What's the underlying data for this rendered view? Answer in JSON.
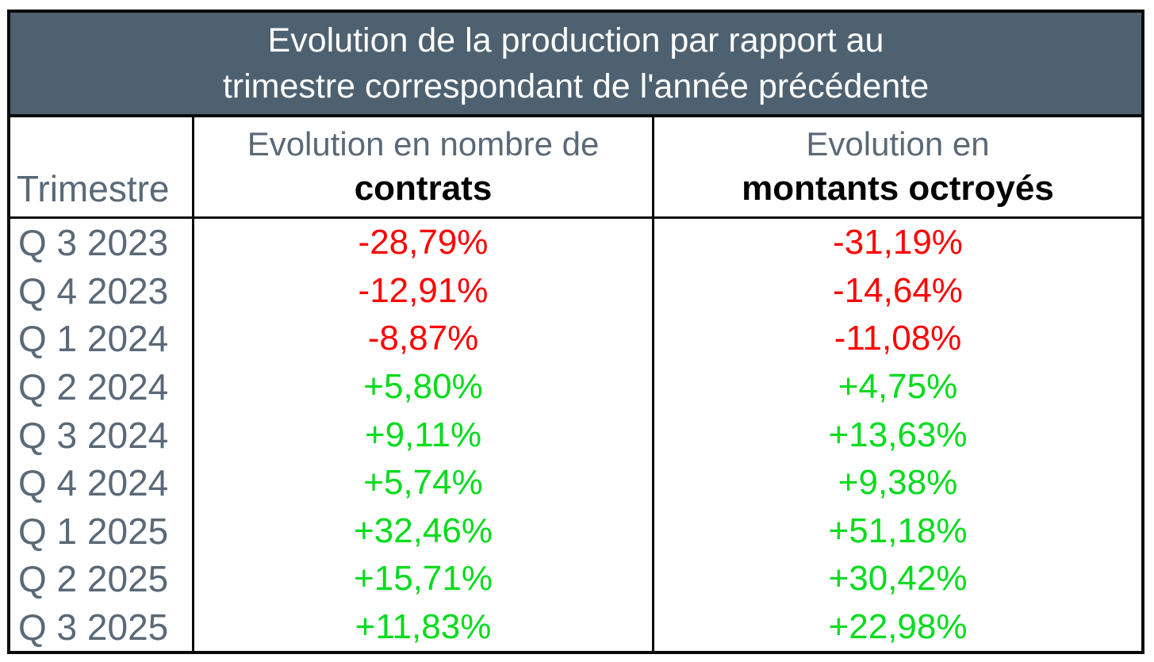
{
  "title": {
    "line1": "Evolution de la production par rapport au",
    "line2": "trimestre correspondant de l'année précédente"
  },
  "header": {
    "trimestre": "Trimestre",
    "contrats_sub": "Evolution en nombre de",
    "contrats_main": "contrats",
    "montants_sub": "Evolution en",
    "montants_main": "montants octroyés"
  },
  "rows": [
    {
      "trimestre": "Q 3 2023",
      "contrats": "-28,79%",
      "montants": "-31,19%",
      "trend": "negative"
    },
    {
      "trimestre": "Q 4 2023",
      "contrats": "-12,91%",
      "montants": "-14,64%",
      "trend": "negative"
    },
    {
      "trimestre": "Q 1 2024",
      "contrats": "-8,87%",
      "montants": "-11,08%",
      "trend": "negative"
    },
    {
      "trimestre": "Q 2 2024",
      "contrats": "+5,80%",
      "montants": "+4,75%",
      "trend": "positive"
    },
    {
      "trimestre": "Q 3 2024",
      "contrats": "+9,11%",
      "montants": "+13,63%",
      "trend": "positive"
    },
    {
      "trimestre": "Q 4 2024",
      "contrats": "+5,74%",
      "montants": "+9,38%",
      "trend": "positive"
    },
    {
      "trimestre": "Q 1 2025",
      "contrats": "+32,46%",
      "montants": "+51,18%",
      "trend": "positive"
    },
    {
      "trimestre": "Q 2 2025",
      "contrats": "+15,71%",
      "montants": "+30,42%",
      "trend": "positive"
    },
    {
      "trimestre": "Q 3 2025",
      "contrats": "+11,83%",
      "montants": "+22,98%",
      "trend": "positive"
    }
  ],
  "colors": {
    "title_background": "#4e6170",
    "title_text": "#ffffff",
    "label_text": "#5a6977",
    "negative_value": "#ff0000",
    "positive_value": "#00dc1c",
    "border": "#0a0a0a"
  },
  "chart_data": {
    "type": "table",
    "title": "Evolution de la production par rapport au trimestre correspondant de l'année précédente",
    "categories": [
      "Q 3 2023",
      "Q 4 2023",
      "Q 1 2024",
      "Q 2 2024",
      "Q 3 2024",
      "Q 4 2024",
      "Q 1 2025",
      "Q 2 2025",
      "Q 3 2025"
    ],
    "series": [
      {
        "name": "Evolution en nombre de contrats",
        "unit": "%",
        "values": [
          -28.79,
          -12.91,
          -8.87,
          5.8,
          9.11,
          5.74,
          32.46,
          15.71,
          11.83
        ]
      },
      {
        "name": "Evolution en montants octroyés",
        "unit": "%",
        "values": [
          -31.19,
          -14.64,
          -11.08,
          4.75,
          13.63,
          9.38,
          51.18,
          30.42,
          22.98
        ]
      }
    ]
  }
}
